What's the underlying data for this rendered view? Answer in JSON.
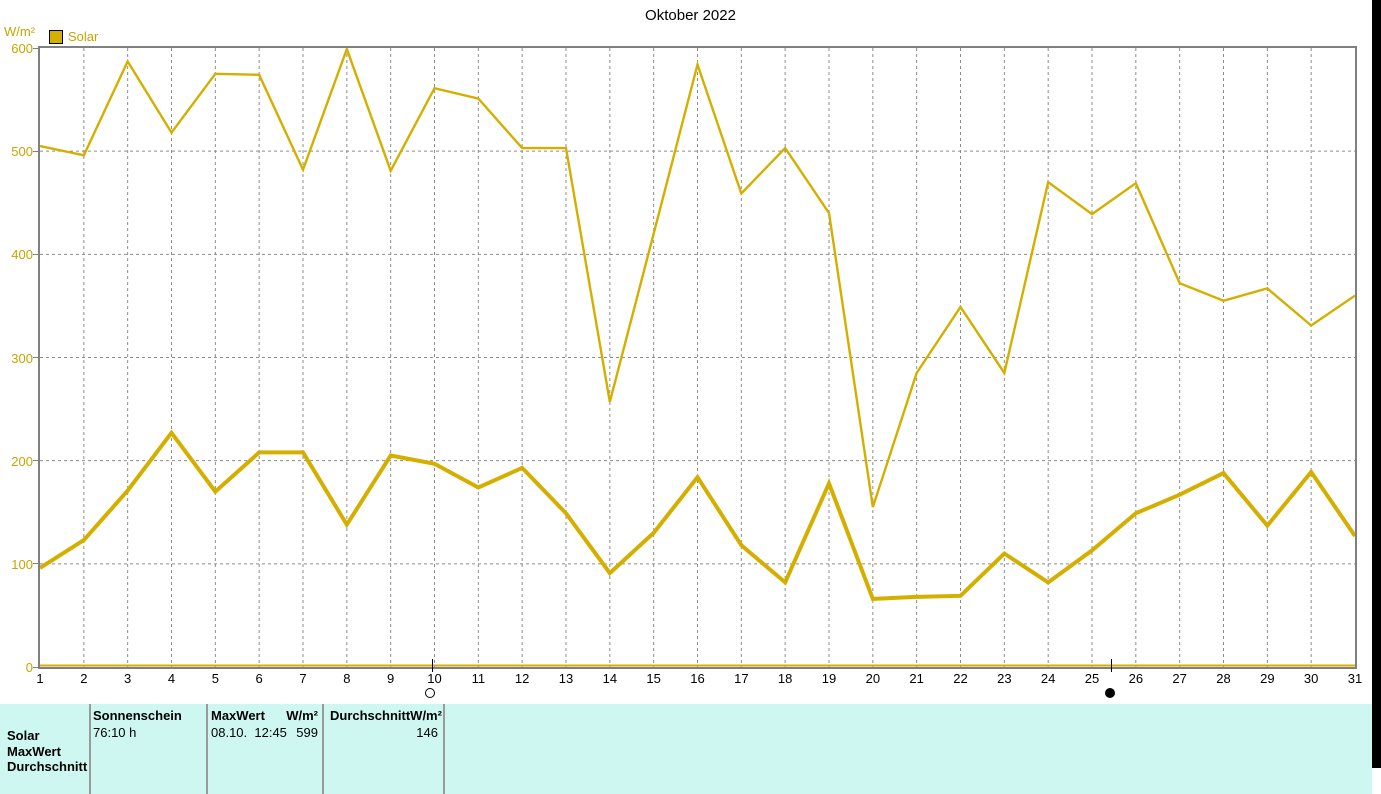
{
  "window": {
    "title": "Oktober 2022"
  },
  "colors": {
    "line_gold": "#D4AF00",
    "axis_text_gold": "#C9A400",
    "grid_gray": "#8C8C8C",
    "border_gray": "#808080",
    "table_bg": "#CDF7F0",
    "black": "#000000"
  },
  "legend": {
    "label": "Solar",
    "swatch_color": "#D4AF00"
  },
  "axis": {
    "y_unit": "W/m²",
    "y_ticks": [
      0,
      100,
      200,
      300,
      400,
      500,
      600
    ],
    "x_ticks": [
      1,
      2,
      3,
      4,
      5,
      6,
      7,
      8,
      9,
      10,
      11,
      12,
      13,
      14,
      15,
      16,
      17,
      18,
      19,
      20,
      21,
      22,
      23,
      24,
      25,
      26,
      27,
      28,
      29,
      30,
      31
    ]
  },
  "markers": [
    {
      "day": 9.95,
      "type": "full-moon"
    },
    {
      "day": 25.45,
      "type": "new-moon"
    }
  ],
  "chart_data": {
    "type": "line",
    "title": "Oktober 2022",
    "xlabel": "",
    "ylabel": "W/m²",
    "ylim": [
      0,
      600
    ],
    "grid": true,
    "legend_position": "top-left",
    "legend": [
      "Solar"
    ],
    "x": [
      1,
      2,
      3,
      4,
      5,
      6,
      7,
      8,
      9,
      10,
      11,
      12,
      13,
      14,
      15,
      16,
      17,
      18,
      19,
      20,
      21,
      22,
      23,
      24,
      25,
      26,
      27,
      28,
      29,
      30,
      31
    ],
    "series": [
      {
        "name": "MaxWert",
        "style": "thin",
        "values": [
          505,
          496,
          587,
          518,
          575,
          574,
          482,
          599,
          481,
          561,
          551,
          503,
          503,
          257,
          420,
          584,
          459,
          503,
          440,
          155,
          285,
          349,
          285,
          470,
          439,
          469,
          372,
          355,
          367,
          331,
          360
        ]
      },
      {
        "name": "Durchschnitt",
        "style": "thick",
        "values": [
          96,
          123,
          171,
          227,
          170,
          208,
          208,
          138,
          205,
          197,
          174,
          193,
          149,
          91,
          130,
          184,
          118,
          82,
          178,
          66,
          68,
          69,
          110,
          82,
          113,
          149,
          167,
          188,
          137,
          189,
          127
        ]
      }
    ],
    "zero_baseline": 0
  },
  "table": {
    "row_labels": [
      "Solar",
      "MaxWert",
      "Durchschnitt"
    ],
    "columns": [
      {
        "header": "Sonnenschein",
        "header_unit": "",
        "value": "76:10 h",
        "value_right": ""
      },
      {
        "header": "MaxWert",
        "header_unit": "W/m²",
        "value": "08.10.  12:45",
        "value_right": "599"
      },
      {
        "header": "Durchschnitt",
        "header_unit": "W/m²",
        "value": "",
        "value_right": "146"
      }
    ]
  }
}
